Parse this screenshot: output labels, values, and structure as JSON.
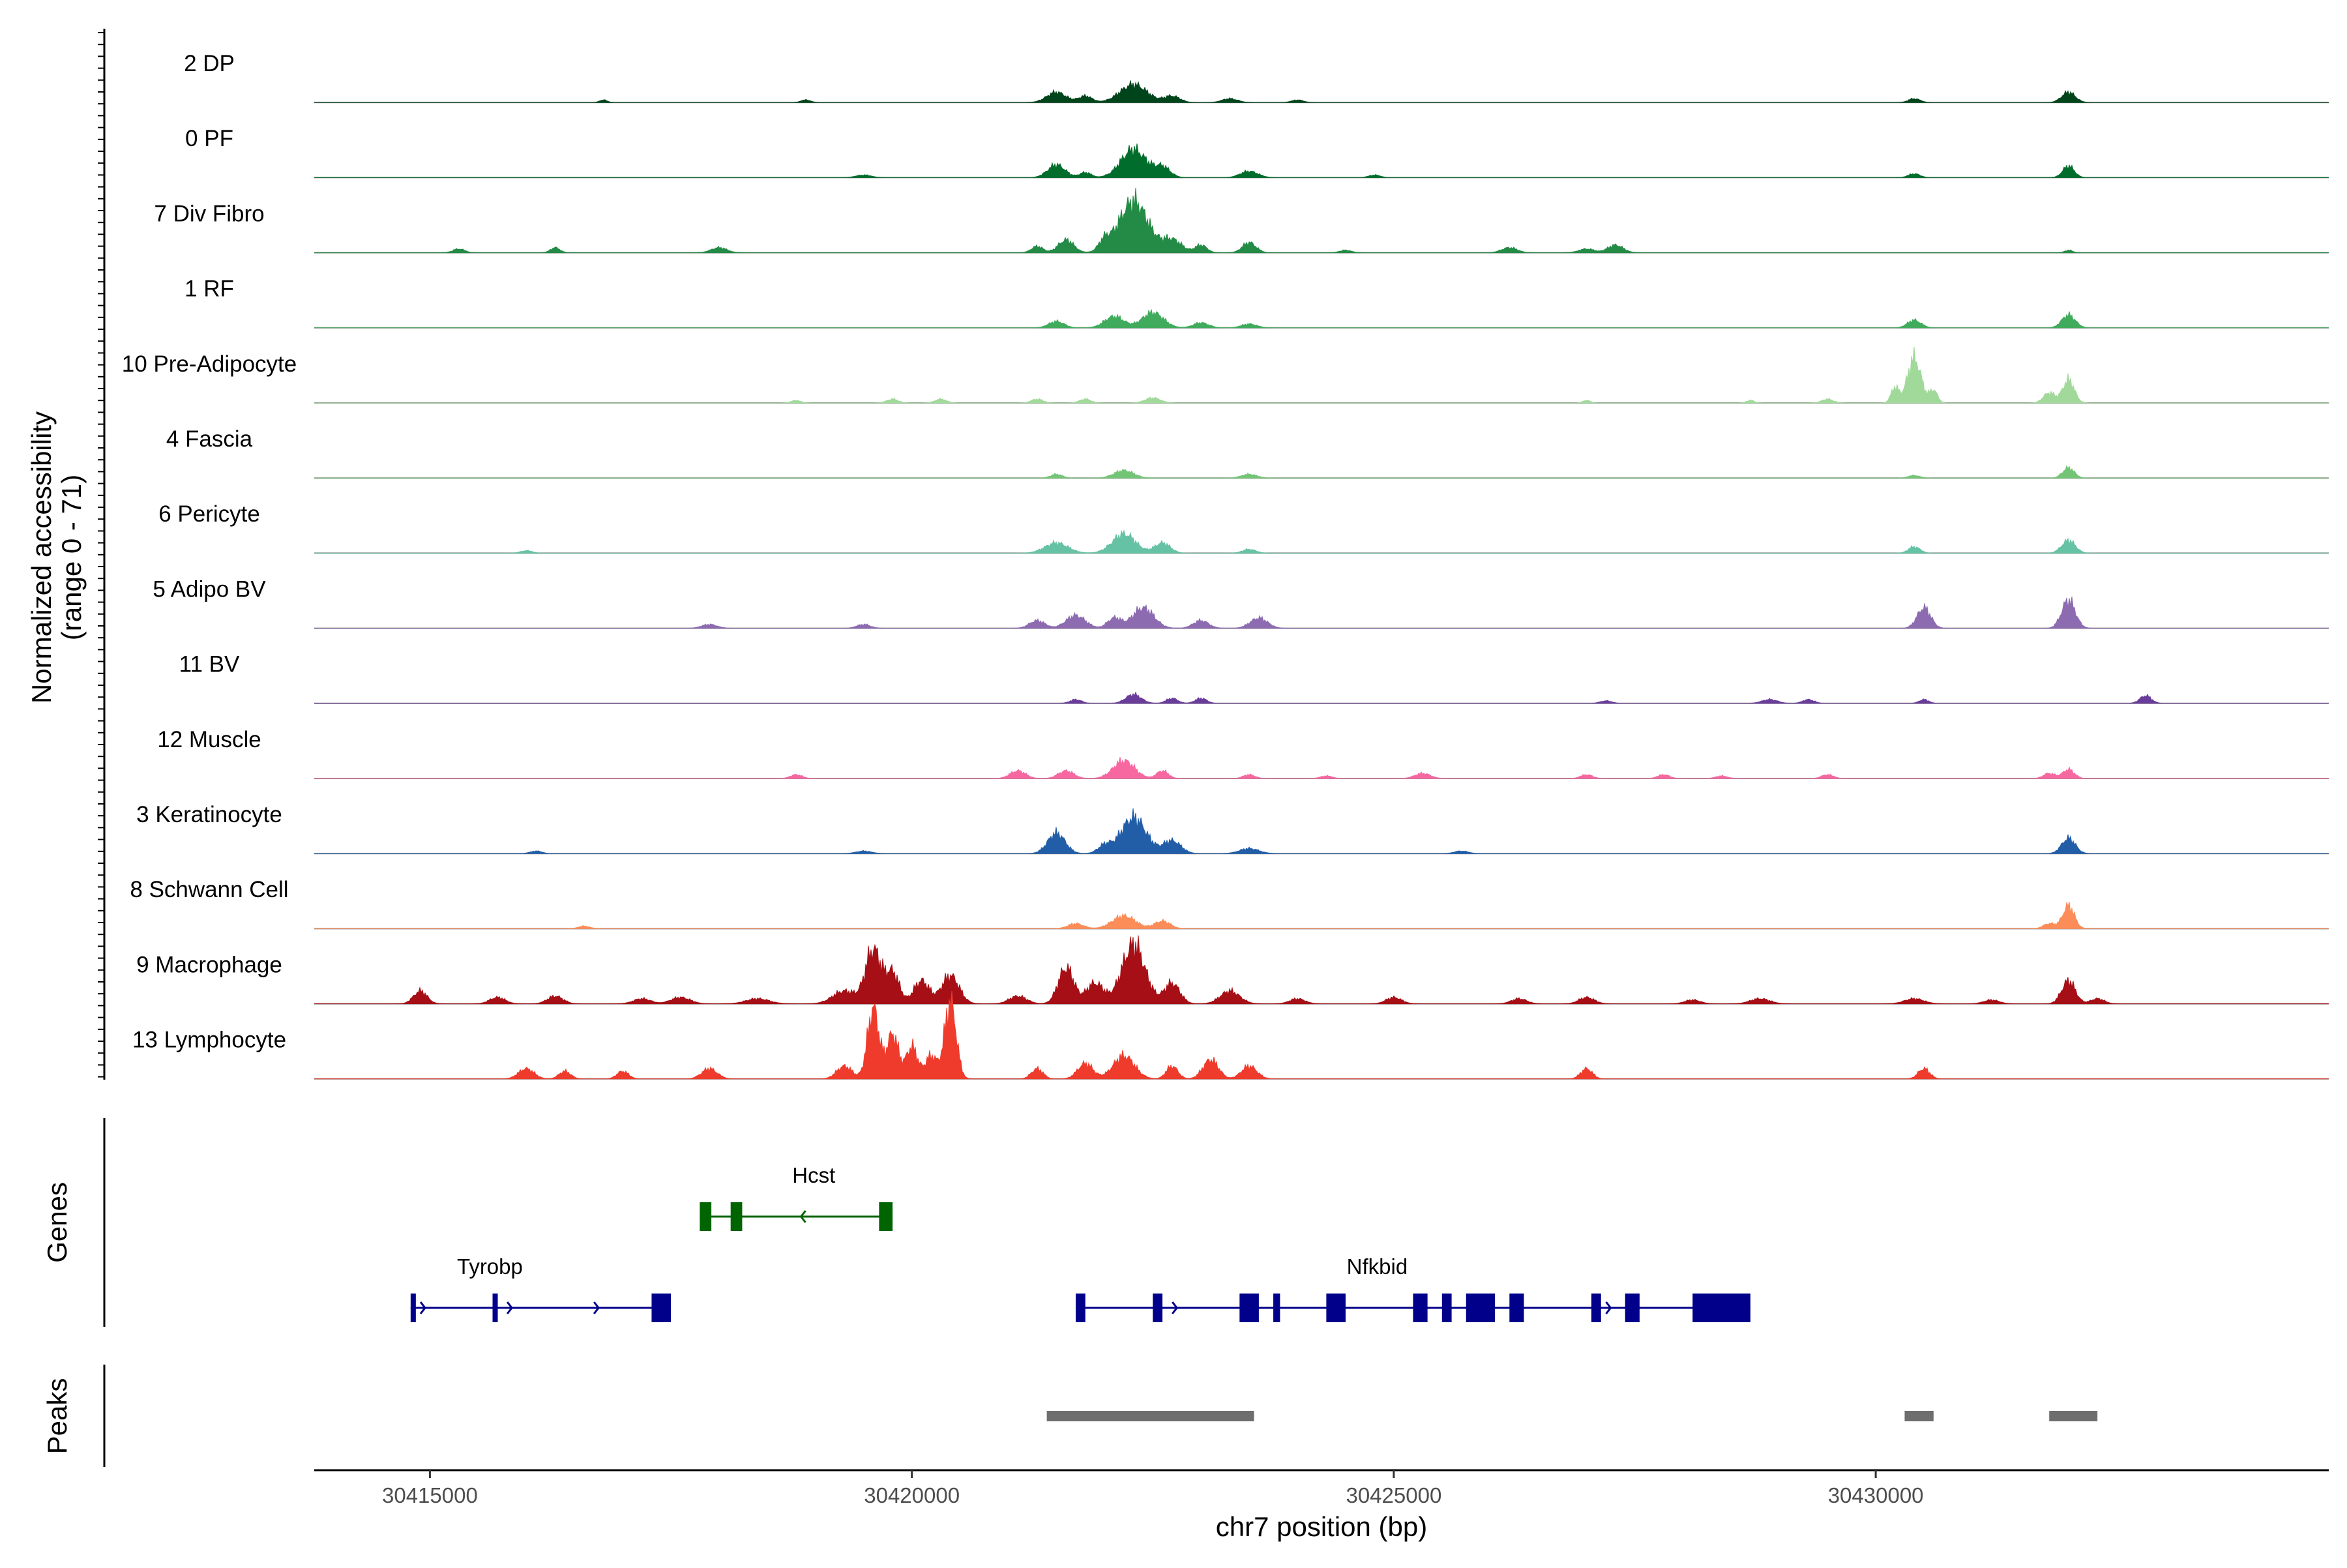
{
  "chart_data": {
    "type": "area",
    "title": "",
    "ylabel_line1": "Normalized accessibility",
    "ylabel_line2": "(range 0 - 71)",
    "xlabel": "chr7 position (bp)",
    "xlim": [
      30413800,
      30434700
    ],
    "ylim": [
      0,
      71
    ],
    "xticks": [
      30415000,
      30420000,
      30425000,
      30430000
    ],
    "xtick_labels": [
      "30415000",
      "30420000",
      "30425000",
      "30430000"
    ],
    "baseline_color": "#888888",
    "tracks": [
      {
        "name": "2 DP",
        "color": "#00441b",
        "peaks": [
          [
            30416800,
            2,
            40
          ],
          [
            30418900,
            2,
            50
          ],
          [
            30421500,
            8,
            100
          ],
          [
            30421800,
            5,
            70
          ],
          [
            30422300,
            14,
            140
          ],
          [
            30422700,
            5,
            80
          ],
          [
            30423300,
            3,
            80
          ],
          [
            30424000,
            2,
            60
          ],
          [
            30430400,
            3,
            60
          ],
          [
            30432000,
            8,
            70
          ]
        ]
      },
      {
        "name": "0 PF",
        "color": "#006d2c",
        "peaks": [
          [
            30419500,
            2,
            80
          ],
          [
            30421500,
            10,
            90
          ],
          [
            30421800,
            4,
            60
          ],
          [
            30422300,
            22,
            130
          ],
          [
            30422600,
            8,
            80
          ],
          [
            30423500,
            5,
            90
          ],
          [
            30424800,
            2,
            60
          ],
          [
            30430400,
            3,
            60
          ],
          [
            30432000,
            9,
            60
          ]
        ]
      },
      {
        "name": "7 Div Fibro",
        "color": "#238b45",
        "peaks": [
          [
            30415300,
            3,
            60
          ],
          [
            30416300,
            4,
            50
          ],
          [
            30418000,
            4,
            80
          ],
          [
            30421300,
            5,
            60
          ],
          [
            30421600,
            10,
            80
          ],
          [
            30422000,
            8,
            60
          ],
          [
            30422300,
            40,
            150
          ],
          [
            30422700,
            10,
            100
          ],
          [
            30423000,
            6,
            60
          ],
          [
            30423500,
            8,
            70
          ],
          [
            30424500,
            2,
            60
          ],
          [
            30426200,
            4,
            80
          ],
          [
            30427000,
            3,
            80
          ],
          [
            30427300,
            6,
            80
          ],
          [
            30432000,
            2,
            40
          ]
        ]
      },
      {
        "name": "1 RF",
        "color": "#41ab5d",
        "peaks": [
          [
            30421500,
            5,
            80
          ],
          [
            30422100,
            9,
            100
          ],
          [
            30422500,
            12,
            110
          ],
          [
            30423000,
            4,
            80
          ],
          [
            30423500,
            3,
            80
          ],
          [
            30430400,
            6,
            70
          ],
          [
            30432000,
            10,
            70
          ]
        ]
      },
      {
        "name": "10 Pre-Adipocyte",
        "color": "#a1d99b",
        "peaks": [
          [
            30418800,
            2,
            50
          ],
          [
            30419800,
            3,
            60
          ],
          [
            30420300,
            3,
            60
          ],
          [
            30421300,
            3,
            60
          ],
          [
            30421800,
            3,
            60
          ],
          [
            30422500,
            4,
            80
          ],
          [
            30427000,
            2,
            40
          ],
          [
            30428700,
            2,
            40
          ],
          [
            30429500,
            3,
            60
          ],
          [
            30430200,
            12,
            40
          ],
          [
            30430400,
            35,
            70
          ],
          [
            30430600,
            10,
            40
          ],
          [
            30431800,
            8,
            60
          ],
          [
            30432000,
            18,
            60
          ]
        ]
      },
      {
        "name": "4 Fascia",
        "color": "#74c476",
        "peaks": [
          [
            30421500,
            3,
            60
          ],
          [
            30422200,
            6,
            100
          ],
          [
            30423500,
            3,
            80
          ],
          [
            30430400,
            2,
            60
          ],
          [
            30432000,
            8,
            60
          ]
        ]
      },
      {
        "name": "6 Pericyte",
        "color": "#66c2a4",
        "peaks": [
          [
            30416000,
            2,
            60
          ],
          [
            30421500,
            8,
            120
          ],
          [
            30422200,
            15,
            120
          ],
          [
            30422600,
            8,
            80
          ],
          [
            30423500,
            3,
            70
          ],
          [
            30430400,
            5,
            60
          ],
          [
            30432000,
            10,
            70
          ]
        ]
      },
      {
        "name": "5 Adipo BV",
        "color": "#8c6bb1",
        "peaks": [
          [
            30417900,
            3,
            80
          ],
          [
            30419500,
            3,
            70
          ],
          [
            30421300,
            6,
            80
          ],
          [
            30421700,
            10,
            100
          ],
          [
            30422100,
            8,
            70
          ],
          [
            30422400,
            16,
            110
          ],
          [
            30423000,
            6,
            80
          ],
          [
            30423600,
            8,
            90
          ],
          [
            30430500,
            16,
            70
          ],
          [
            30432000,
            22,
            70
          ]
        ]
      },
      {
        "name": "11 BV",
        "color": "#6a3d9a",
        "peaks": [
          [
            30421700,
            3,
            60
          ],
          [
            30422300,
            7,
            80
          ],
          [
            30422700,
            4,
            60
          ],
          [
            30423000,
            4,
            60
          ],
          [
            30427200,
            2,
            60
          ],
          [
            30428900,
            3,
            80
          ],
          [
            30429300,
            3,
            60
          ],
          [
            30430500,
            3,
            50
          ],
          [
            30432800,
            6,
            60
          ]
        ]
      },
      {
        "name": "12 Muscle",
        "color": "#f768a1",
        "peaks": [
          [
            30418800,
            3,
            60
          ],
          [
            30421100,
            6,
            80
          ],
          [
            30421600,
            6,
            80
          ],
          [
            30422200,
            14,
            110
          ],
          [
            30422600,
            6,
            60
          ],
          [
            30423500,
            3,
            60
          ],
          [
            30424300,
            2,
            60
          ],
          [
            30425300,
            4,
            80
          ],
          [
            30427000,
            3,
            60
          ],
          [
            30427800,
            3,
            60
          ],
          [
            30428400,
            2,
            60
          ],
          [
            30429500,
            3,
            60
          ],
          [
            30431800,
            4,
            60
          ],
          [
            30432000,
            7,
            60
          ]
        ]
      },
      {
        "name": "3 Keratinocyte",
        "color": "#225ea8",
        "peaks": [
          [
            30416100,
            2,
            60
          ],
          [
            30419500,
            2,
            80
          ],
          [
            30421500,
            16,
            90
          ],
          [
            30422000,
            6,
            70
          ],
          [
            30422300,
            28,
            130
          ],
          [
            30422700,
            10,
            90
          ],
          [
            30423500,
            4,
            100
          ],
          [
            30425700,
            2,
            70
          ],
          [
            30432000,
            12,
            70
          ]
        ]
      },
      {
        "name": "8 Schwann Cell",
        "color": "#fc8d59",
        "peaks": [
          [
            30416600,
            2,
            60
          ],
          [
            30421700,
            4,
            80
          ],
          [
            30422200,
            10,
            120
          ],
          [
            30422600,
            6,
            80
          ],
          [
            30431800,
            4,
            60
          ],
          [
            30432000,
            18,
            60
          ]
        ]
      },
      {
        "name": "9 Macrophage",
        "color": "#a50f15",
        "peaks": [
          [
            30414900,
            10,
            70
          ],
          [
            30415700,
            5,
            80
          ],
          [
            30416300,
            6,
            80
          ],
          [
            30417200,
            4,
            90
          ],
          [
            30417600,
            5,
            100
          ],
          [
            30418400,
            4,
            120
          ],
          [
            30419300,
            10,
            120
          ],
          [
            30419600,
            42,
            80
          ],
          [
            30419800,
            24,
            70
          ],
          [
            30420100,
            18,
            80
          ],
          [
            30420400,
            22,
            90
          ],
          [
            30421100,
            6,
            90
          ],
          [
            30421600,
            28,
            80
          ],
          [
            30421900,
            16,
            90
          ],
          [
            30422300,
            46,
            120
          ],
          [
            30422700,
            16,
            80
          ],
          [
            30423300,
            10,
            100
          ],
          [
            30424000,
            4,
            80
          ],
          [
            30425000,
            5,
            80
          ],
          [
            30426300,
            4,
            80
          ],
          [
            30427000,
            5,
            80
          ],
          [
            30428100,
            3,
            80
          ],
          [
            30428800,
            4,
            100
          ],
          [
            30430400,
            4,
            100
          ],
          [
            30431200,
            3,
            80
          ],
          [
            30432000,
            18,
            70
          ],
          [
            30432300,
            4,
            70
          ]
        ]
      },
      {
        "name": "13 Lymphocyte",
        "color": "#ef3b2c",
        "peaks": [
          [
            30416000,
            8,
            80
          ],
          [
            30416400,
            6,
            60
          ],
          [
            30417000,
            6,
            60
          ],
          [
            30417900,
            8,
            80
          ],
          [
            30419300,
            10,
            80
          ],
          [
            30419600,
            55,
            60
          ],
          [
            30419800,
            35,
            60
          ],
          [
            30420000,
            25,
            60
          ],
          [
            30420200,
            18,
            60
          ],
          [
            30420400,
            60,
            60
          ],
          [
            30421300,
            8,
            60
          ],
          [
            30421800,
            12,
            80
          ],
          [
            30422200,
            18,
            110
          ],
          [
            30422700,
            10,
            60
          ],
          [
            30423100,
            15,
            80
          ],
          [
            30423500,
            10,
            80
          ],
          [
            30427000,
            8,
            60
          ],
          [
            30430500,
            8,
            60
          ]
        ]
      }
    ],
    "genes_label": "Genes",
    "genes": [
      {
        "name": "Hcst",
        "color": "#006400",
        "strand": "-",
        "row": 0,
        "start": 30417800,
        "end": 30419800,
        "exons": [
          [
            30417800,
            30417920
          ],
          [
            30418120,
            30418240
          ],
          [
            30419660,
            30419800
          ]
        ]
      },
      {
        "name": "Tyrobp",
        "color": "#00008b",
        "strand": "+",
        "row": 1,
        "start": 30414800,
        "end": 30417500,
        "exons": [
          [
            30414800,
            30414840
          ],
          [
            30415650,
            30415690
          ],
          [
            30417300,
            30417500
          ]
        ]
      },
      {
        "name": "Nfkbid",
        "color": "#00008b",
        "strand": "+",
        "row": 1,
        "start": 30421700,
        "end": 30428700,
        "exons": [
          [
            30421700,
            30421800
          ],
          [
            30422500,
            30422600
          ],
          [
            30423400,
            30423600
          ],
          [
            30423750,
            30423820
          ],
          [
            30424300,
            30424500
          ],
          [
            30425200,
            30425350
          ],
          [
            30425500,
            30425600
          ],
          [
            30425750,
            30426050
          ],
          [
            30426200,
            30426350
          ],
          [
            30427050,
            30427150
          ],
          [
            30427400,
            30427550
          ],
          [
            30428100,
            30428700
          ]
        ]
      }
    ],
    "peaks_label": "Peaks",
    "peaks_color": "#6e6e6e",
    "peak_regions": [
      [
        30421400,
        30423550
      ],
      [
        30430300,
        30430600
      ],
      [
        30431800,
        30432300
      ]
    ]
  }
}
